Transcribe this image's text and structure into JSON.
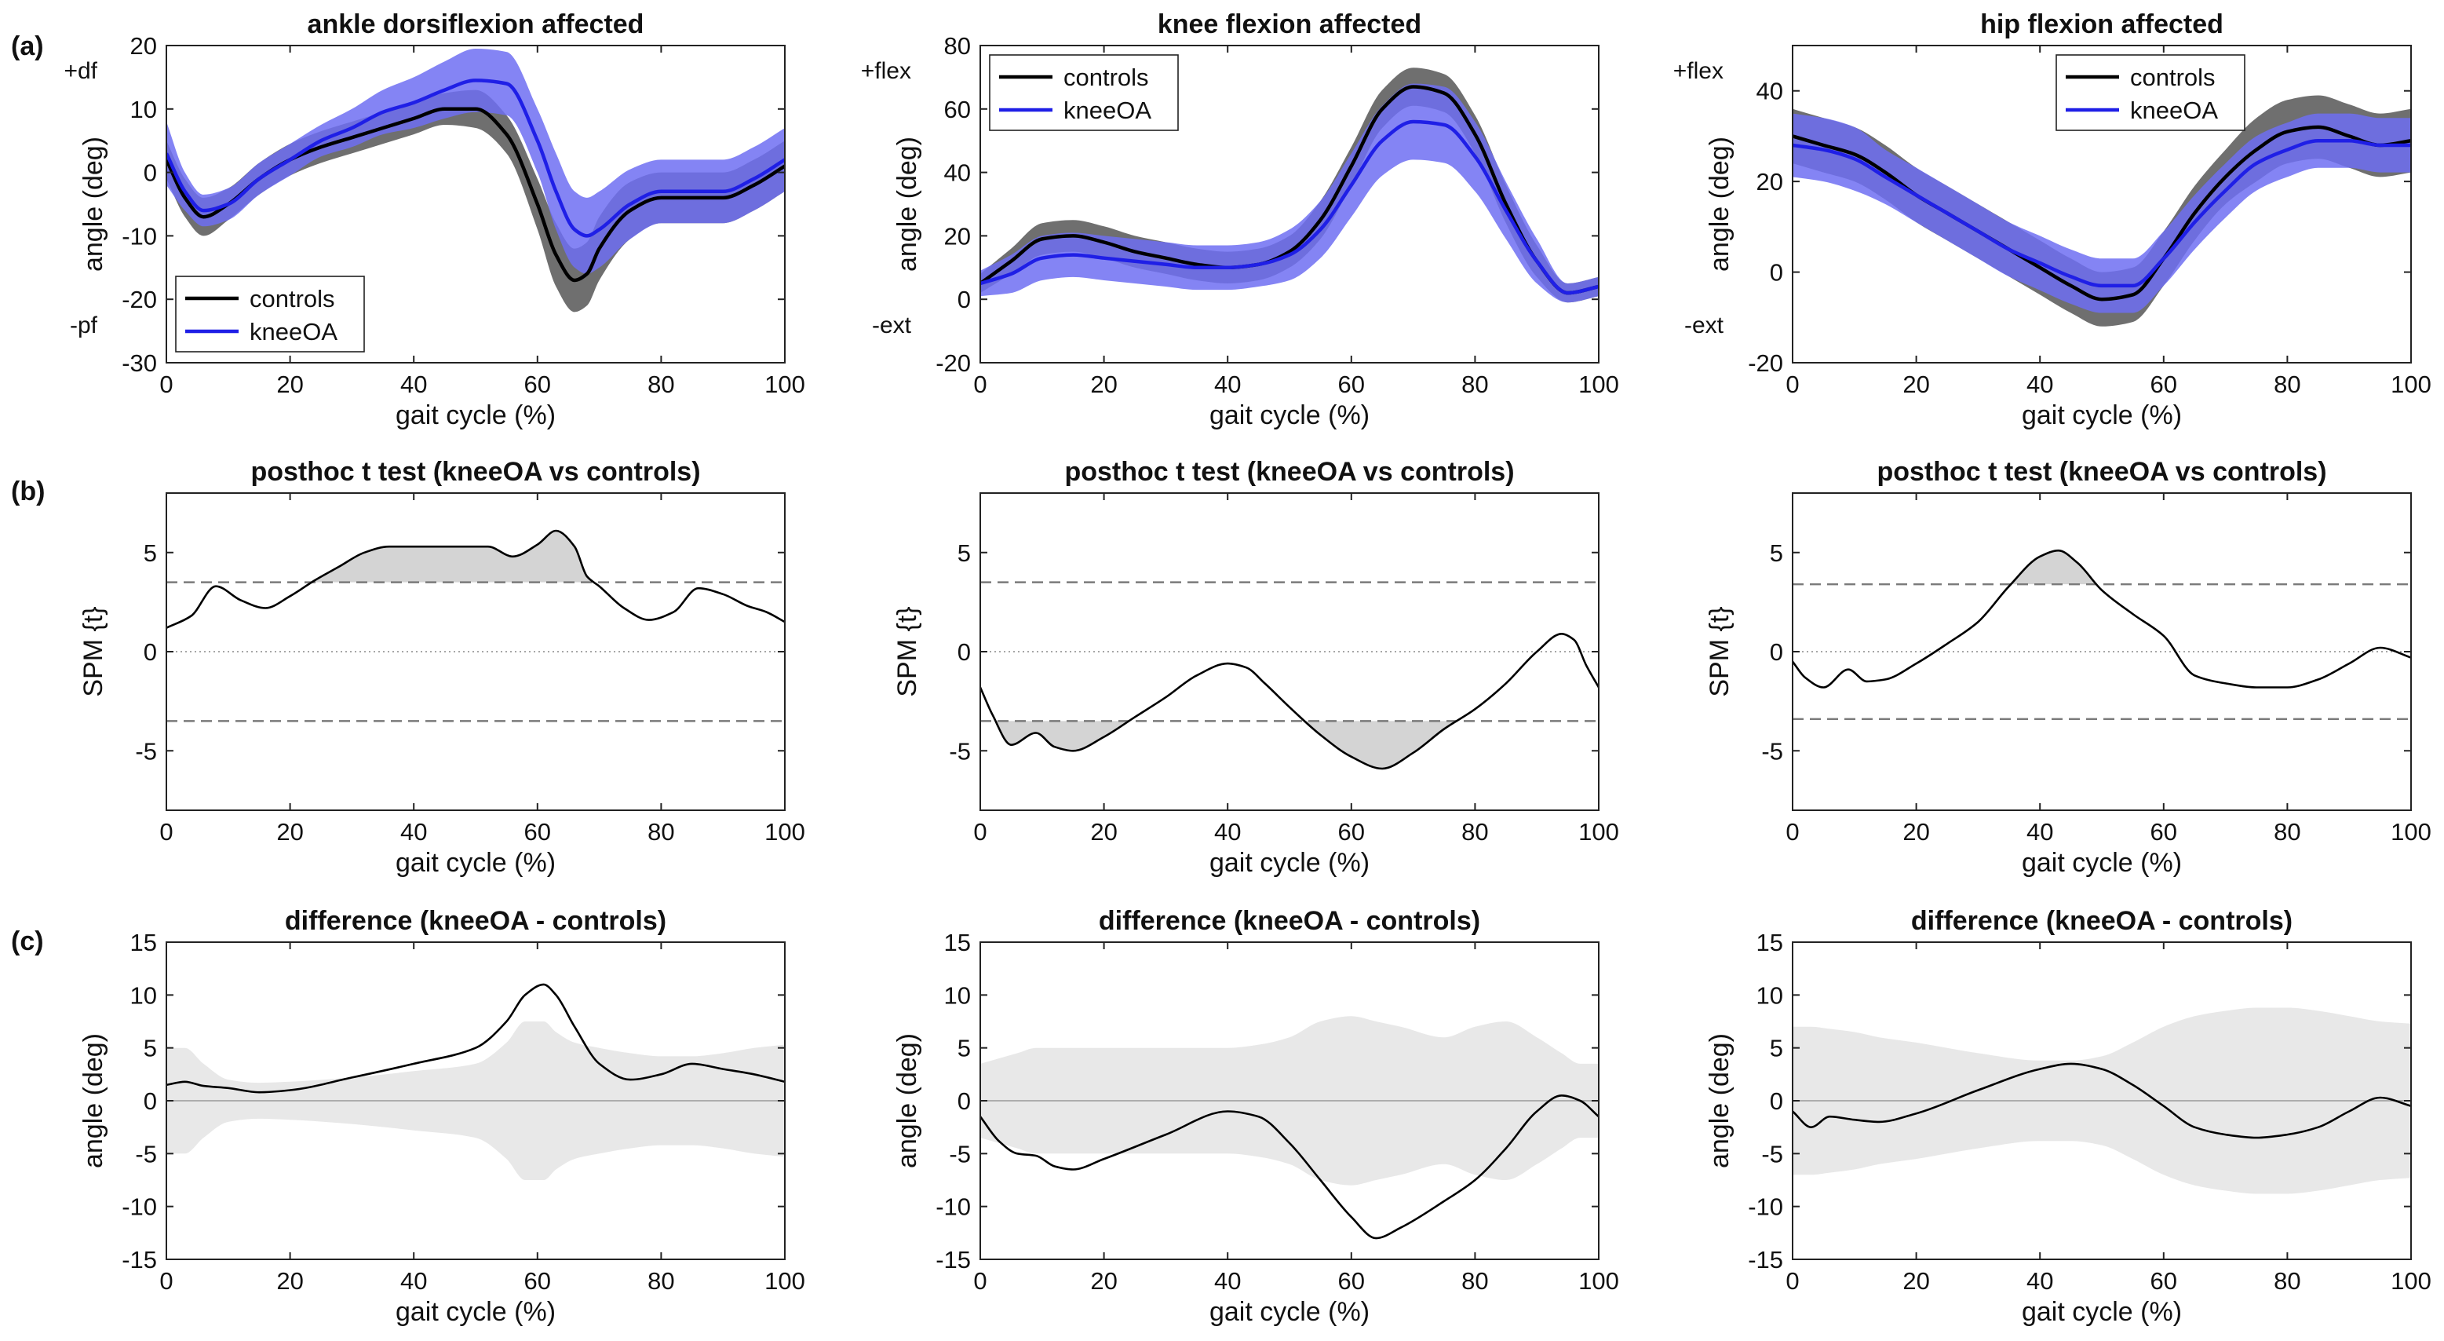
{
  "figure": {
    "row_labels": [
      "(a)",
      "(b)",
      "(c)"
    ],
    "legend_labels": [
      "controls",
      "kneeOA"
    ]
  },
  "colors": {
    "controls_line": "#000000",
    "controls_band": "#6f6f6f",
    "kneeoa_line": "#1f1fe6",
    "kneeoa_band": "#6e6ef2",
    "spm_fill": "#d4d4d4",
    "threshold_line": "#7a7a7a",
    "diff_band": "#e8e8e8",
    "axis": "#222222"
  },
  "chart_data": [
    {
      "id": "a1",
      "type": "line",
      "row": 0,
      "col": 0,
      "title": "ankle dorsiflexion affected",
      "xlabel": "gait cycle (%)",
      "ylabel": "angle (deg)",
      "xlim": [
        0,
        100
      ],
      "ylim": [
        -30,
        20
      ],
      "xticks": [
        0,
        20,
        40,
        60,
        80,
        100
      ],
      "yticks": [
        -30,
        -20,
        -10,
        0,
        10,
        20
      ],
      "side_labels": {
        "top": "+df",
        "bottom": "-pf"
      },
      "legend": "bottom-left",
      "x": [
        0,
        3,
        6,
        10,
        15,
        20,
        25,
        30,
        35,
        40,
        45,
        50,
        55,
        60,
        63,
        66,
        68,
        70,
        75,
        80,
        85,
        90,
        95,
        100
      ],
      "series": [
        {
          "name": "controls",
          "mean": [
            2,
            -4,
            -7,
            -5,
            -1,
            2,
            4,
            5.5,
            7,
            8.5,
            10,
            10,
            6,
            -5,
            -13,
            -17,
            -16,
            -12,
            -6,
            -4,
            -4,
            -4,
            -2,
            1
          ],
          "sd": [
            3,
            3,
            3,
            2.5,
            2.5,
            2.5,
            2.5,
            2.5,
            2.5,
            2.5,
            2.5,
            3,
            3,
            4,
            5,
            5,
            5,
            5,
            4.5,
            4,
            4,
            4,
            4,
            4
          ]
        },
        {
          "name": "kneeOA",
          "mean": [
            3,
            -3,
            -6,
            -5,
            -1,
            2,
            5,
            7,
            9.5,
            11,
            13,
            14.5,
            14,
            5,
            -3,
            -9,
            -10,
            -9,
            -5,
            -3,
            -3,
            -3,
            -1,
            2
          ],
          "sd": [
            5,
            3,
            2.5,
            2.5,
            2.5,
            2.5,
            2.5,
            3,
            3.5,
            4,
            4.5,
            5,
            5,
            5,
            6,
            6,
            6,
            6,
            5.5,
            5,
            5,
            5,
            5,
            5
          ]
        }
      ]
    },
    {
      "id": "a2",
      "type": "line",
      "row": 0,
      "col": 1,
      "title": "knee flexion affected",
      "xlabel": "gait cycle (%)",
      "ylabel": "angle (deg)",
      "xlim": [
        0,
        100
      ],
      "ylim": [
        -20,
        80
      ],
      "xticks": [
        0,
        20,
        40,
        60,
        80,
        100
      ],
      "yticks": [
        -20,
        0,
        20,
        40,
        60,
        80
      ],
      "side_labels": {
        "top": "+flex",
        "bottom": "-ext"
      },
      "legend": "top-left",
      "x": [
        0,
        5,
        10,
        15,
        20,
        25,
        30,
        35,
        40,
        45,
        50,
        55,
        60,
        65,
        70,
        75,
        80,
        85,
        90,
        95,
        100
      ],
      "series": [
        {
          "name": "controls",
          "mean": [
            5,
            12,
            19,
            20,
            18,
            15,
            13,
            11,
            10,
            11,
            15,
            25,
            42,
            60,
            67,
            65,
            52,
            30,
            12,
            2,
            4
          ],
          "sd": [
            3,
            4,
            5,
            5,
            5,
            5,
            5,
            5,
            5,
            5,
            5,
            6,
            6,
            6,
            6,
            6,
            6,
            6,
            5,
            3,
            3
          ]
        },
        {
          "name": "kneeOA",
          "mean": [
            5,
            8,
            13,
            14,
            13,
            12,
            11,
            10,
            10,
            11,
            14,
            22,
            36,
            50,
            56,
            55,
            45,
            28,
            12,
            2,
            4
          ],
          "sd": [
            4,
            6,
            7,
            7,
            7,
            7,
            7,
            7,
            7,
            7,
            8,
            9,
            10,
            11,
            12,
            12,
            11,
            9,
            7,
            3,
            3
          ]
        }
      ]
    },
    {
      "id": "a3",
      "type": "line",
      "row": 0,
      "col": 2,
      "title": "hip flexion affected",
      "xlabel": "gait cycle (%)",
      "ylabel": "angle (deg)",
      "xlim": [
        0,
        100
      ],
      "ylim": [
        -20,
        50
      ],
      "xticks": [
        0,
        20,
        40,
        60,
        80,
        100
      ],
      "yticks": [
        -20,
        0,
        20,
        40
      ],
      "side_labels": {
        "top": "+flex",
        "bottom": "-ext"
      },
      "legend": "top-right",
      "x": [
        0,
        5,
        10,
        15,
        20,
        25,
        30,
        35,
        40,
        45,
        50,
        55,
        60,
        65,
        70,
        75,
        80,
        85,
        90,
        95,
        100
      ],
      "series": [
        {
          "name": "controls",
          "mean": [
            30,
            28,
            26,
            22,
            17,
            13,
            9,
            5,
            1,
            -3,
            -6,
            -5,
            3,
            13,
            21,
            27,
            31,
            32,
            30,
            28,
            29
          ],
          "sd": [
            6,
            6,
            6,
            6,
            6,
            6,
            6,
            6,
            6,
            6,
            6,
            6,
            6,
            6,
            6,
            7,
            7,
            7,
            7,
            7,
            7
          ]
        },
        {
          "name": "kneeOA",
          "mean": [
            28,
            27,
            25,
            21,
            17,
            13,
            9,
            5,
            2,
            -1,
            -3,
            -3,
            3,
            11,
            18,
            24,
            27,
            29,
            29,
            28,
            28
          ],
          "sd": [
            7,
            7,
            7,
            6,
            6,
            6,
            6,
            6,
            6,
            6,
            6,
            6,
            6,
            6,
            6,
            6,
            6,
            6,
            6,
            6,
            6
          ]
        }
      ]
    },
    {
      "id": "b1",
      "type": "line",
      "row": 1,
      "col": 0,
      "title": "posthoc t test (kneeOA vs controls)",
      "xlabel": "gait cycle (%)",
      "ylabel": "SPM {t}",
      "xlim": [
        0,
        100
      ],
      "ylim": [
        -8,
        8
      ],
      "xticks": [
        0,
        20,
        40,
        60,
        80,
        100
      ],
      "yticks": [
        -5,
        0,
        5
      ],
      "threshold": 3.5,
      "x": [
        0,
        4,
        8,
        12,
        16,
        20,
        24,
        28,
        32,
        36,
        40,
        44,
        48,
        52,
        56,
        60,
        63,
        66,
        68,
        70,
        74,
        78,
        82,
        86,
        90,
        94,
        97,
        100
      ],
      "values": [
        1.2,
        1.8,
        3.3,
        2.6,
        2.2,
        2.8,
        3.6,
        4.3,
        5.0,
        5.3,
        5.3,
        5.3,
        5.3,
        5.3,
        4.8,
        5.4,
        6.1,
        5.3,
        3.8,
        3.3,
        2.2,
        1.6,
        2.0,
        3.2,
        2.9,
        2.3,
        2.0,
        1.5
      ]
    },
    {
      "id": "b2",
      "type": "line",
      "row": 1,
      "col": 1,
      "title": "posthoc t test (kneeOA vs controls)",
      "xlabel": "gait cycle (%)",
      "ylabel": "SPM {t}",
      "xlim": [
        0,
        100
      ],
      "ylim": [
        -8,
        8
      ],
      "xticks": [
        0,
        20,
        40,
        60,
        80,
        100
      ],
      "yticks": [
        -5,
        0,
        5
      ],
      "threshold": 3.5,
      "x": [
        0,
        2,
        5,
        9,
        12,
        15,
        20,
        25,
        30,
        35,
        40,
        43,
        46,
        50,
        55,
        60,
        65,
        70,
        75,
        80,
        85,
        90,
        94,
        96,
        98,
        100
      ],
      "values": [
        -1.8,
        -3.2,
        -4.7,
        -4.1,
        -4.8,
        -5.0,
        -4.3,
        -3.3,
        -2.3,
        -1.2,
        -0.6,
        -0.8,
        -1.6,
        -2.8,
        -4.2,
        -5.3,
        -5.9,
        -5.1,
        -3.9,
        -2.9,
        -1.6,
        0.0,
        0.9,
        0.6,
        -0.7,
        -1.8
      ]
    },
    {
      "id": "b3",
      "type": "line",
      "row": 1,
      "col": 2,
      "title": "posthoc t test (kneeOA vs controls)",
      "xlabel": "gait cycle (%)",
      "ylabel": "SPM {t}",
      "xlim": [
        0,
        100
      ],
      "ylim": [
        -8,
        8
      ],
      "xticks": [
        0,
        20,
        40,
        60,
        80,
        100
      ],
      "yticks": [
        -5,
        0,
        5
      ],
      "threshold": 3.4,
      "x": [
        0,
        2,
        5,
        9,
        12,
        15,
        20,
        25,
        30,
        35,
        40,
        43,
        46,
        50,
        55,
        60,
        65,
        70,
        75,
        80,
        85,
        90,
        95,
        100
      ],
      "values": [
        -0.5,
        -1.3,
        -1.8,
        -0.9,
        -1.5,
        -1.4,
        -0.6,
        0.4,
        1.5,
        3.3,
        4.8,
        5.1,
        4.5,
        3.1,
        1.9,
        0.8,
        -1.2,
        -1.6,
        -1.8,
        -1.8,
        -1.4,
        -0.6,
        0.2,
        -0.3
      ]
    },
    {
      "id": "c1",
      "type": "line",
      "row": 2,
      "col": 0,
      "title": "difference (kneeOA - controls)",
      "xlabel": "gait cycle (%)",
      "ylabel": "angle (deg)",
      "xlim": [
        0,
        100
      ],
      "ylim": [
        -15,
        15
      ],
      "xticks": [
        0,
        20,
        40,
        60,
        80,
        100
      ],
      "yticks": [
        -15,
        -10,
        -5,
        0,
        5,
        10,
        15
      ],
      "x": [
        0,
        3,
        6,
        10,
        15,
        20,
        30,
        40,
        50,
        55,
        58,
        61,
        63,
        66,
        70,
        75,
        80,
        85,
        90,
        95,
        100
      ],
      "values": [
        1.5,
        1.8,
        1.4,
        1.2,
        0.8,
        1.0,
        2.2,
        3.5,
        5.0,
        7.5,
        10.0,
        11.0,
        10.0,
        7.0,
        3.5,
        2.0,
        2.5,
        3.5,
        3.0,
        2.5,
        1.8
      ],
      "band": [
        5.0,
        5.0,
        3.5,
        2.0,
        1.7,
        1.8,
        2.2,
        2.8,
        3.5,
        5.5,
        7.5,
        7.5,
        6.5,
        5.5,
        5.0,
        4.5,
        4.2,
        4.2,
        4.5,
        5.0,
        5.3
      ]
    },
    {
      "id": "c2",
      "type": "line",
      "row": 2,
      "col": 1,
      "title": "difference (kneeOA - controls)",
      "xlabel": "gait cycle (%)",
      "ylabel": "angle (deg)",
      "xlim": [
        0,
        100
      ],
      "ylim": [
        -15,
        15
      ],
      "xticks": [
        0,
        20,
        40,
        60,
        80,
        100
      ],
      "yticks": [
        -15,
        -10,
        -5,
        0,
        5,
        10,
        15
      ],
      "x": [
        0,
        3,
        6,
        9,
        12,
        15,
        20,
        30,
        40,
        45,
        50,
        55,
        60,
        64,
        68,
        75,
        80,
        85,
        90,
        94,
        97,
        100
      ],
      "values": [
        -1.5,
        -3.8,
        -5.0,
        -5.2,
        -6.2,
        -6.5,
        -5.5,
        -3.2,
        -1.0,
        -1.5,
        -4.0,
        -7.5,
        -11.0,
        -13.0,
        -12.0,
        -9.5,
        -7.5,
        -4.5,
        -1.0,
        0.5,
        0.0,
        -1.5
      ],
      "band": [
        3.5,
        4.0,
        4.5,
        5.0,
        5.0,
        5.0,
        5.0,
        5.0,
        5.0,
        5.3,
        6.0,
        7.5,
        8.0,
        7.5,
        7.0,
        6.0,
        7.0,
        7.5,
        6.0,
        4.5,
        3.5,
        3.5
      ]
    },
    {
      "id": "c3",
      "type": "line",
      "row": 2,
      "col": 2,
      "title": "difference (kneeOA - controls)",
      "xlabel": "gait cycle (%)",
      "ylabel": "angle (deg)",
      "xlim": [
        0,
        100
      ],
      "ylim": [
        -15,
        15
      ],
      "xticks": [
        0,
        20,
        40,
        60,
        80,
        100
      ],
      "yticks": [
        -15,
        -10,
        -5,
        0,
        5,
        10,
        15
      ],
      "x": [
        0,
        3,
        6,
        10,
        14,
        20,
        30,
        40,
        45,
        50,
        55,
        60,
        65,
        70,
        75,
        80,
        85,
        90,
        95,
        100
      ],
      "values": [
        -1.0,
        -2.5,
        -1.5,
        -1.8,
        -2.0,
        -1.2,
        1.0,
        3.0,
        3.5,
        3.0,
        1.5,
        -0.5,
        -2.5,
        -3.2,
        -3.5,
        -3.2,
        -2.5,
        -1.0,
        0.3,
        -0.5
      ],
      "band": [
        7.0,
        7.0,
        6.8,
        6.5,
        6.0,
        5.5,
        4.5,
        3.8,
        3.8,
        4.2,
        5.5,
        7.0,
        8.0,
        8.5,
        8.8,
        8.8,
        8.5,
        8.0,
        7.5,
        7.3
      ]
    }
  ]
}
